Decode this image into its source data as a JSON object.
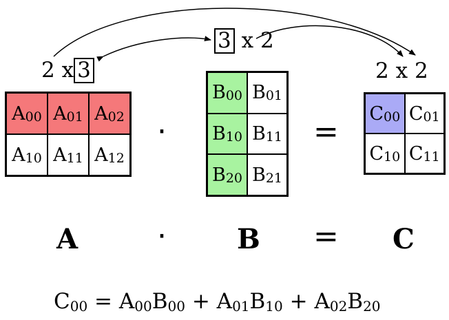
{
  "colors": {
    "highlight_a": "#f5787a",
    "highlight_b": "#a8f3a0",
    "highlight_c": "#aaaaf6"
  },
  "dims": {
    "a": {
      "rows": "2",
      "x": "x",
      "cols": "3"
    },
    "b": {
      "rows": "3",
      "x": "x",
      "cols": "2"
    },
    "c": {
      "rows": "2",
      "x": "x",
      "cols": "2"
    }
  },
  "matrices": {
    "a": [
      [
        {
          "base": "A",
          "sub": "00"
        },
        {
          "base": "A",
          "sub": "01"
        },
        {
          "base": "A",
          "sub": "02"
        }
      ],
      [
        {
          "base": "A",
          "sub": "10"
        },
        {
          "base": "A",
          "sub": "11"
        },
        {
          "base": "A",
          "sub": "12"
        }
      ]
    ],
    "b": [
      [
        {
          "base": "B",
          "sub": "00"
        },
        {
          "base": "B",
          "sub": "01"
        }
      ],
      [
        {
          "base": "B",
          "sub": "10"
        },
        {
          "base": "B",
          "sub": "11"
        }
      ],
      [
        {
          "base": "B",
          "sub": "20"
        },
        {
          "base": "B",
          "sub": "21"
        }
      ]
    ],
    "c": [
      [
        {
          "base": "C",
          "sub": "00"
        },
        {
          "base": "C",
          "sub": "01"
        }
      ],
      [
        {
          "base": "C",
          "sub": "10"
        },
        {
          "base": "C",
          "sub": "11"
        }
      ]
    ]
  },
  "operators": {
    "dot": "·",
    "equals": "="
  },
  "labels": {
    "a": "A",
    "b": "B",
    "c": "C"
  },
  "formula": {
    "lhs_base": "C",
    "lhs_sub": "00",
    "equals": "=",
    "terms": [
      {
        "a_base": "A",
        "a_sub": "00",
        "b_base": "B",
        "b_sub": "00"
      },
      {
        "a_base": "A",
        "a_sub": "01",
        "b_base": "B",
        "b_sub": "10"
      },
      {
        "a_base": "A",
        "a_sub": "02",
        "b_base": "B",
        "b_sub": "20"
      }
    ],
    "plus": "+"
  }
}
